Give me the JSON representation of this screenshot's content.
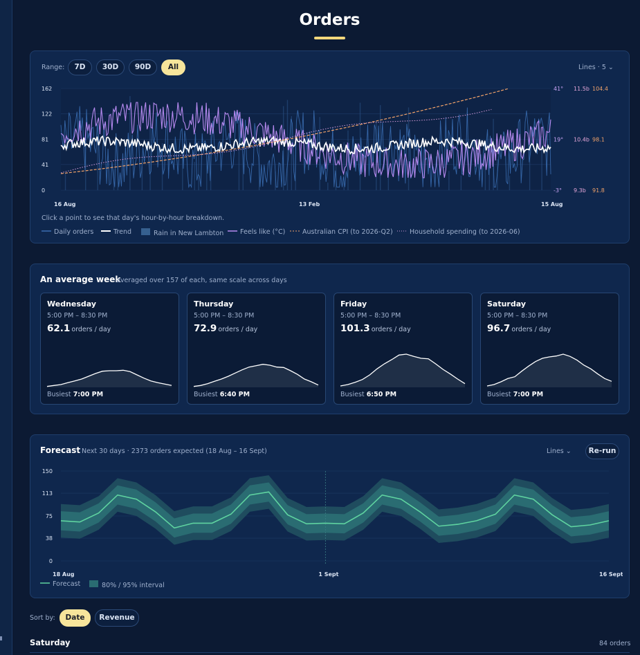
{
  "page": {
    "title": "Orders"
  },
  "range_selector": {
    "label": "Range:",
    "options": [
      {
        "label": "7D",
        "active": false
      },
      {
        "label": "30D",
        "active": false
      },
      {
        "label": "90D",
        "active": false
      },
      {
        "label": "All",
        "active": true
      }
    ]
  },
  "lines_menu": {
    "label": "Lines",
    "count": "· 5",
    "icon": "chevron-down-icon"
  },
  "main_chart": {
    "hint": "Click a point to see that day's hour-by-hour breakdown.",
    "legend": {
      "daily_orders": "Daily orders",
      "trend": "Trend",
      "rain": "Rain in New Lambton",
      "feels_like": "Feels like (°C)",
      "cpi": "Australian CPI (to 2026-Q2)",
      "spending": "Household spending (to 2026-06)"
    },
    "colors": {
      "daily_orders": "#2f5e9e",
      "trend": "#ffffff",
      "rain": "#36608f",
      "feels_like": "#b78af0",
      "cpi": "#f0a26a",
      "spending": "#d59ad9"
    }
  },
  "week": {
    "title": "An average week",
    "subtitle": "averaged over 157 of each, same scale across days",
    "unit": "orders / day",
    "busiest_label": "Busiest",
    "days": [
      {
        "name": "Wednesday",
        "window": "5:00 PM – 8:30 PM",
        "value": "62.1",
        "busiest": "7:00 PM"
      },
      {
        "name": "Thursday",
        "window": "5:00 PM – 8:30 PM",
        "value": "72.9",
        "busiest": "6:40 PM"
      },
      {
        "name": "Friday",
        "window": "5:00 PM – 8:30 PM",
        "value": "101.3",
        "busiest": "6:50 PM"
      },
      {
        "name": "Saturday",
        "window": "5:00 PM – 8:30 PM",
        "value": "96.7",
        "busiest": "7:00 PM"
      }
    ]
  },
  "forecast": {
    "title": "Forecast",
    "subtitle": "Next 30 days · 2373 orders expected (18 Aug – 16 Sept)",
    "lines_label": "Lines",
    "rerun_label": "Re-run",
    "legend": {
      "forecast": "Forecast",
      "interval": "80% / 95% interval"
    },
    "colors": {
      "line": "#5fd3a0",
      "band80": "#2a6c72",
      "band95": "#1f4c5e"
    }
  },
  "sort": {
    "label": "Sort by:",
    "options": [
      {
        "label": "Date",
        "active": true
      },
      {
        "label": "Revenue",
        "active": false
      }
    ]
  },
  "list": {
    "first_day": "Saturday",
    "first_count": "84 orders"
  },
  "chart_data": [
    {
      "type": "line",
      "title": "",
      "x_ticks": [
        "16 Aug",
        "13 Feb",
        "15 Aug"
      ],
      "y_ticks_left": [
        0,
        41,
        81,
        122,
        162
      ],
      "y_ticks_right_temp": [
        "-3°",
        "19°",
        "41°"
      ],
      "y_ticks_right_spending": [
        "9.3b",
        "10.4b",
        "11.5b"
      ],
      "y_ticks_right_cpi": [
        "91.8",
        "98.1",
        "104.4"
      ],
      "ylim": [
        0,
        162
      ],
      "series": [
        {
          "name": "Trend",
          "approx_range": [
            68,
            88
          ]
        },
        {
          "name": "Feels like (°C)",
          "approx_range": [
            -3,
            35
          ]
        },
        {
          "name": "Australian CPI (to 2026-Q2)",
          "start": 91.8,
          "end": 104.4
        },
        {
          "name": "Household spending (to 2026-06)",
          "start": 9.4,
          "end": 11.3
        }
      ]
    },
    {
      "type": "area",
      "title": "An average week",
      "days": [
        "Wednesday",
        "Thursday",
        "Friday",
        "Saturday"
      ],
      "series": [
        {
          "name": "Wednesday",
          "values": [
            2,
            4,
            6,
            10,
            14,
            18,
            24,
            30,
            35,
            36,
            36,
            37,
            34,
            27,
            20,
            14,
            10,
            7,
            4
          ]
        },
        {
          "name": "Thursday",
          "values": [
            2,
            4,
            8,
            13,
            18,
            24,
            31,
            38,
            44,
            47,
            50,
            48,
            44,
            43,
            36,
            28,
            18,
            12,
            5
          ]
        },
        {
          "name": "Friday",
          "values": [
            3,
            6,
            11,
            17,
            27,
            40,
            51,
            60,
            70,
            72,
            67,
            63,
            62,
            51,
            39,
            29,
            18,
            8
          ]
        },
        {
          "name": "Saturday",
          "values": [
            3,
            6,
            12,
            19,
            23,
            35,
            46,
            56,
            63,
            66,
            68,
            72,
            67,
            59,
            48,
            40,
            29,
            19,
            13
          ]
        }
      ]
    },
    {
      "type": "line",
      "title": "Forecast",
      "x_ticks": [
        "18 Aug",
        "1 Sept",
        "16 Sept"
      ],
      "y_ticks": [
        0,
        38,
        75,
        113,
        150
      ],
      "ylim": [
        0,
        150
      ],
      "x": [
        "18 Aug",
        "19 Aug",
        "20 Aug",
        "21 Aug",
        "22 Aug",
        "23 Aug",
        "24 Aug",
        "25 Aug",
        "26 Aug",
        "27 Aug",
        "28 Aug",
        "29 Aug",
        "30 Aug",
        "31 Aug",
        "1 Sept",
        "2 Sept",
        "3 Sept",
        "4 Sept",
        "5 Sept",
        "6 Sept",
        "7 Sept",
        "8 Sept",
        "9 Sept",
        "10 Sept",
        "11 Sept",
        "12 Sept",
        "13 Sept",
        "14 Sept",
        "15 Sept",
        "16 Sept"
      ],
      "series": [
        {
          "name": "Forecast",
          "values": [
            67,
            65,
            80,
            110,
            103,
            82,
            55,
            63,
            63,
            78,
            110,
            115,
            77,
            62,
            63,
            62,
            80,
            110,
            103,
            82,
            58,
            61,
            67,
            78,
            110,
            103,
            77,
            57,
            60,
            67
          ]
        }
      ]
    }
  ]
}
